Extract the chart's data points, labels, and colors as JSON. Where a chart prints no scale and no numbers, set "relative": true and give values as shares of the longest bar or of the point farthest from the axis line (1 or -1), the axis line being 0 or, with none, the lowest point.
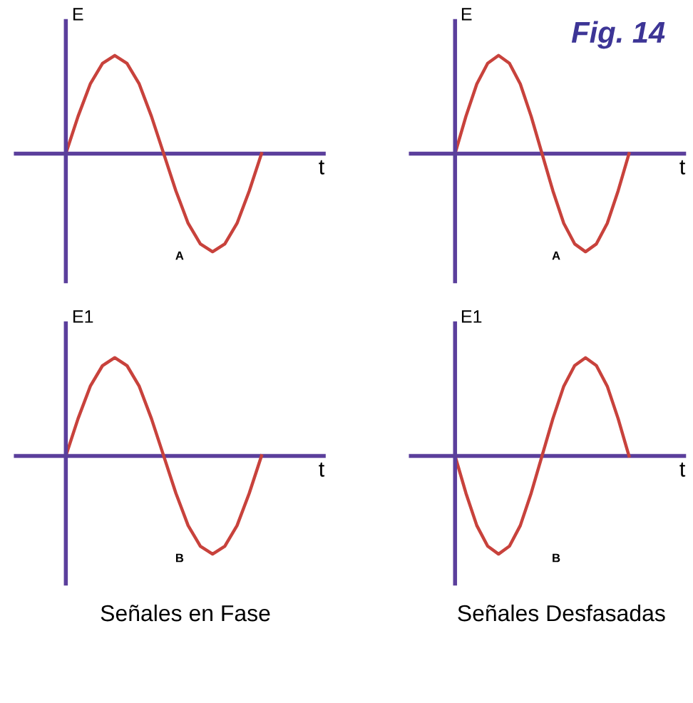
{
  "chart_data": [
    {
      "type": "line",
      "ylabel": "E",
      "xlabel": "t",
      "relative": true,
      "annotations": [
        "A"
      ],
      "ref_lines": [
        {
          "axis": "y",
          "value": 0,
          "color": "#5b3f9c"
        }
      ],
      "categories": [
        null,
        null,
        null,
        null,
        null,
        null,
        null,
        null,
        null,
        null,
        null,
        null,
        null,
        null,
        null,
        null,
        null
      ],
      "series": [
        {
          "color": "#c8423c",
          "values": [
            0,
            0.38,
            0.71,
            0.92,
            1,
            0.92,
            0.71,
            0.38,
            0,
            -0.38,
            -0.71,
            -0.92,
            -1,
            -0.92,
            -0.71,
            -0.38,
            0
          ]
        }
      ]
    },
    {
      "type": "line",
      "title": "Fig. 14",
      "ylabel": "E",
      "xlabel": "t",
      "relative": true,
      "annotations": [
        "A"
      ],
      "ref_lines": [
        {
          "axis": "y",
          "value": 0,
          "color": "#5b3f9c"
        }
      ],
      "categories": [
        null,
        null,
        null,
        null,
        null,
        null,
        null,
        null,
        null,
        null,
        null,
        null,
        null,
        null,
        null,
        null,
        null
      ],
      "series": [
        {
          "color": "#c8423c",
          "values": [
            0,
            0.38,
            0.71,
            0.92,
            1,
            0.92,
            0.71,
            0.38,
            0,
            -0.38,
            -0.71,
            -0.92,
            -1,
            -0.92,
            -0.71,
            -0.38,
            0
          ]
        }
      ]
    },
    {
      "type": "line",
      "ylabel": "E1",
      "xlabel": "t",
      "relative": true,
      "annotations": [
        "B",
        "Señales en Fase"
      ],
      "ref_lines": [
        {
          "axis": "y",
          "value": 0,
          "color": "#5b3f9c"
        }
      ],
      "categories": [
        null,
        null,
        null,
        null,
        null,
        null,
        null,
        null,
        null,
        null,
        null,
        null,
        null,
        null,
        null,
        null,
        null
      ],
      "series": [
        {
          "color": "#c8423c",
          "values": [
            0,
            0.38,
            0.71,
            0.92,
            1,
            0.92,
            0.71,
            0.38,
            0,
            -0.38,
            -0.71,
            -0.92,
            -1,
            -0.92,
            -0.71,
            -0.38,
            0
          ]
        }
      ]
    },
    {
      "type": "line",
      "ylabel": "E1",
      "xlabel": "t",
      "relative": true,
      "annotations": [
        "B",
        "Señales Desfasadas"
      ],
      "ref_lines": [
        {
          "axis": "y",
          "value": 0,
          "color": "#5b3f9c"
        }
      ],
      "categories": [
        null,
        null,
        null,
        null,
        null,
        null,
        null,
        null,
        null,
        null,
        null,
        null,
        null,
        null,
        null,
        null,
        null
      ],
      "series": [
        {
          "color": "#c8423c",
          "values": [
            0,
            -0.38,
            -0.71,
            -0.92,
            -1,
            -0.92,
            -0.71,
            -0.38,
            0,
            0.38,
            0.71,
            0.92,
            1,
            0.92,
            0.71,
            0.38,
            0
          ]
        }
      ]
    }
  ]
}
